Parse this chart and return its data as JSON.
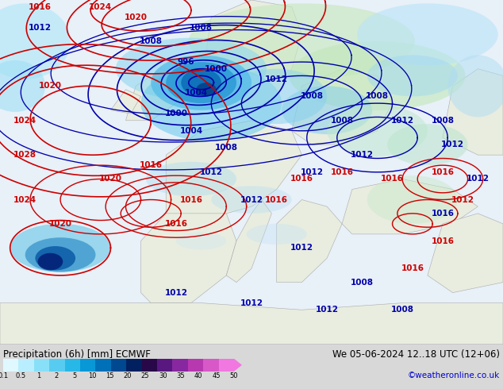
{
  "title_left": "Precipitation (6h) [mm] ECMWF",
  "title_right": "We 05-06-2024 12..18 UTC (12+06)",
  "copyright": "©weatheronline.co.uk",
  "colorbar_values": [
    0.1,
    0.5,
    1,
    2,
    5,
    10,
    15,
    20,
    25,
    30,
    35,
    40,
    45,
    50
  ],
  "colorbar_colors": [
    "#e8f8ff",
    "#c8f0ff",
    "#a0e4f8",
    "#70d4f0",
    "#40c0e8",
    "#10a8e0",
    "#0080c8",
    "#0060a8",
    "#004080",
    "#200850",
    "#502080",
    "#8030a0",
    "#b040b0",
    "#d860c8",
    "#f090e0"
  ],
  "bg_color": "#d8d8d8",
  "label_fontsize": 9,
  "title_fontsize": 9,
  "copyright_fontsize": 8,
  "copyright_color": "#0000cc",
  "map_bg_color": "#f5f5f5",
  "ocean_color": "#e8f0f8",
  "land_color": "#e8ede0",
  "precip_colors": {
    "light": "#c8eef8",
    "medium_light": "#90d8f0",
    "medium": "#50c0e8",
    "medium_dark": "#2090d0",
    "dark": "#0050a0",
    "very_dark": "#002060",
    "green_light": "#d0e8c0",
    "green_medium": "#a8d890"
  },
  "isobar_blue": "#0000aa",
  "isobar_red": "#cc0000",
  "isobar_linewidth": 1.2
}
